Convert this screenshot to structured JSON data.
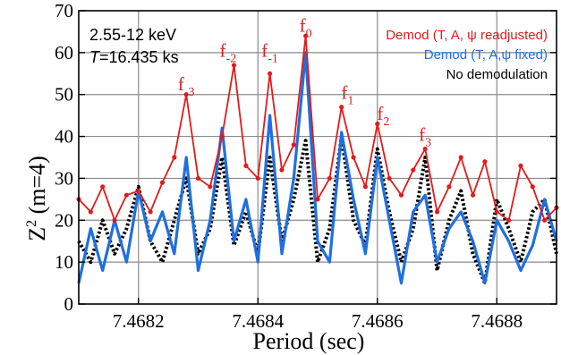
{
  "chart_data": {
    "type": "line",
    "xlabel": "Period (sec)",
    "ylabel_main": "Z",
    "ylabel_sup": "2",
    "ylabel_paren": "(m=4)",
    "xlim": [
      7.4681,
      7.4689
    ],
    "ylim": [
      0,
      70
    ],
    "grid": true,
    "x_ticks": [
      7.4682,
      7.4684,
      7.4686,
      7.4688
    ],
    "x_tick_labels": [
      "7.4682",
      "7.4684",
      "7.4686",
      "7.4688"
    ],
    "y_ticks": [
      0,
      10,
      20,
      30,
      40,
      50,
      60,
      70
    ],
    "y_tick_labels": [
      "0",
      "10",
      "20",
      "30",
      "40",
      "50",
      "60",
      "70"
    ],
    "info_lines": [
      "2.55-12 keV",
      "T=16.435 ks"
    ],
    "legend_position": "top-right",
    "legend": [
      {
        "text": "Demod (T, A, ψ readjusted)",
        "color": "#e31a1c"
      },
      {
        "text": "Demod (T, A,ψ fixed)",
        "color": "#1f6fe0"
      },
      {
        "text": "No demodulation",
        "color": "#000000"
      }
    ],
    "peak_labels": [
      {
        "base": "f",
        "sub": "-3",
        "x": 7.46828,
        "y": 51
      },
      {
        "base": "f",
        "sub": "-2",
        "x": 7.46835,
        "y": 59
      },
      {
        "base": "f",
        "sub": "-1",
        "x": 7.46842,
        "y": 59
      },
      {
        "base": "f",
        "sub": "0",
        "x": 7.46848,
        "y": 65
      },
      {
        "base": "f",
        "sub": "1",
        "x": 7.46855,
        "y": 49
      },
      {
        "base": "f",
        "sub": "2",
        "x": 7.46861,
        "y": 44
      },
      {
        "base": "f",
        "sub": "3",
        "x": 7.46868,
        "y": 39
      }
    ],
    "series": [
      {
        "name": "Demod (T, A, ψ readjusted)",
        "color": "#e31a1c",
        "marker": "dot",
        "x": [
          7.4681,
          7.46812,
          7.46814,
          7.46816,
          7.46818,
          7.4682,
          7.46822,
          7.46824,
          7.46826,
          7.46828,
          7.4683,
          7.46832,
          7.46834,
          7.46836,
          7.46838,
          7.4684,
          7.46842,
          7.46844,
          7.46846,
          7.46848,
          7.4685,
          7.46852,
          7.46854,
          7.46856,
          7.46858,
          7.4686,
          7.46862,
          7.46864,
          7.46866,
          7.46868,
          7.4687,
          7.46872,
          7.46874,
          7.46876,
          7.46878,
          7.4688,
          7.46882,
          7.46884,
          7.46886,
          7.46888,
          7.4689
        ],
        "y": [
          25,
          22,
          28,
          20,
          26,
          27,
          22,
          29,
          35,
          50,
          30,
          28,
          40,
          57,
          33,
          30,
          55,
          32,
          38,
          64,
          25,
          30,
          47,
          35,
          28,
          43,
          30,
          26,
          32,
          37,
          22,
          28,
          35,
          26,
          34,
          22,
          20,
          33,
          28,
          20,
          23
        ]
      },
      {
        "name": "Demod (T, A,ψ fixed)",
        "color": "#1f6fe0",
        "marker": "none",
        "x": [
          7.4681,
          7.46812,
          7.46814,
          7.46816,
          7.46818,
          7.4682,
          7.46822,
          7.46824,
          7.46826,
          7.46828,
          7.4683,
          7.46832,
          7.46834,
          7.46836,
          7.46838,
          7.4684,
          7.46842,
          7.46844,
          7.46846,
          7.46848,
          7.4685,
          7.46852,
          7.46854,
          7.46856,
          7.46858,
          7.4686,
          7.46862,
          7.46864,
          7.46866,
          7.46868,
          7.4687,
          7.46872,
          7.46874,
          7.46876,
          7.46878,
          7.4688,
          7.46882,
          7.46884,
          7.46886,
          7.46888,
          7.4689
        ],
        "y": [
          5,
          18,
          8,
          20,
          10,
          27,
          15,
          22,
          12,
          35,
          8,
          20,
          42,
          15,
          25,
          10,
          45,
          12,
          30,
          60,
          15,
          10,
          41,
          25,
          12,
          35,
          20,
          5,
          22,
          26,
          10,
          18,
          22,
          15,
          5,
          20,
          15,
          8,
          14,
          25,
          15
        ]
      },
      {
        "name": "No demodulation",
        "color": "#000000",
        "marker": "dotted",
        "x": [
          7.4681,
          7.46812,
          7.46814,
          7.46816,
          7.46818,
          7.4682,
          7.46822,
          7.46824,
          7.46826,
          7.46828,
          7.4683,
          7.46832,
          7.46834,
          7.46836,
          7.46838,
          7.4684,
          7.46842,
          7.46844,
          7.46846,
          7.46848,
          7.4685,
          7.46852,
          7.46854,
          7.46856,
          7.46858,
          7.4686,
          7.46862,
          7.46864,
          7.46866,
          7.46868,
          7.4687,
          7.46872,
          7.46874,
          7.46876,
          7.46878,
          7.4688,
          7.46882,
          7.46884,
          7.46886,
          7.46888,
          7.4689
        ],
        "y": [
          15,
          10,
          20,
          12,
          18,
          28,
          15,
          10,
          20,
          30,
          12,
          18,
          35,
          14,
          22,
          12,
          35,
          15,
          25,
          39,
          10,
          18,
          40,
          20,
          14,
          37,
          22,
          10,
          18,
          35,
          8,
          20,
          27,
          12,
          5,
          25,
          18,
          10,
          22,
          25,
          12
        ]
      }
    ]
  }
}
